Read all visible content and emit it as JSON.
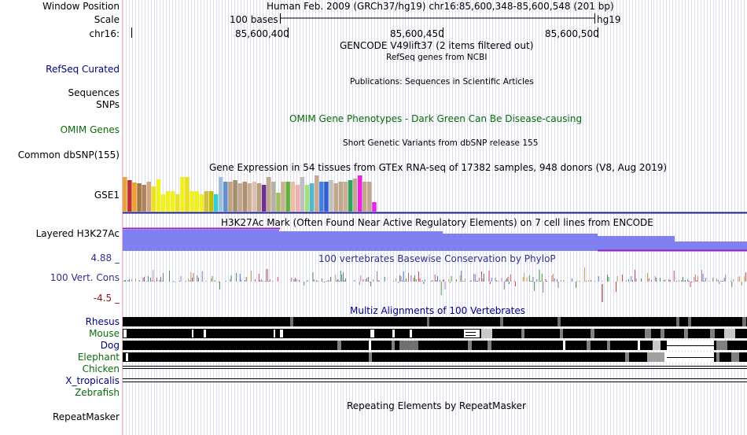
{
  "header": {
    "window_position_label": "Window Position",
    "window_position_value": "Human Feb. 2009 (GRCh37/hg19)   chr16:85,600,348-85,600,548 (201 bp)",
    "scale_label": "Scale",
    "scale_value": "100 bases",
    "scale_genome": "hg19",
    "chrom_label": "chr16:",
    "ticks": [
      "85,600,400",
      "85,600,450",
      "85,600,500"
    ]
  },
  "tracks": {
    "gencode": {
      "title": "GENCODE V49lift37 (2 items filtered out)"
    },
    "refseq": {
      "label": "RefSeq Curated",
      "title": "RefSeq genes from NCBI"
    },
    "publications": {
      "label_sequences": "Sequences",
      "label_snps": "SNPs",
      "title": "Publications: Sequences in Scientific Articles"
    },
    "omim": {
      "label": "OMIM Genes",
      "title": "OMIM Gene Phenotypes - Dark Green Can Be Disease-causing"
    },
    "dbsnp": {
      "label": "Common dbSNP(155)",
      "title": "Short Genetic Variants from dbSNP release 155"
    },
    "gtex": {
      "label": "GSE1",
      "title": "Gene Expression in 54 tissues from GTEx RNA-seq of 17382 samples, 948 donors (V8, Aug 2019)",
      "values": [
        44,
        40,
        37,
        36,
        34,
        38,
        32,
        41,
        22,
        26,
        26,
        22,
        44,
        44,
        26,
        26,
        22,
        26,
        26,
        22,
        44,
        38,
        38,
        40,
        36,
        38,
        36,
        38,
        36,
        34,
        44,
        38,
        24,
        38,
        38,
        38,
        34,
        44,
        34,
        36,
        46,
        38,
        38,
        40,
        36,
        38,
        38,
        40,
        42,
        46,
        38,
        38,
        12,
        0
      ],
      "colors": [
        "#e8a040",
        "#c03030",
        "#f0a030",
        "#a07840",
        "#b08060",
        "#d0a880",
        "#f0e020",
        "#f0f020",
        "#f0f020",
        "#f0f020",
        "#f0f020",
        "#e8e030",
        "#f0f020",
        "#e8e020",
        "#f0f020",
        "#f0f020",
        "#f0f020",
        "#d0c040",
        "#c0c000",
        "#30d0d0",
        "#a0c0e0",
        "#6090d0",
        "#c0a080",
        "#a09070",
        "#c0a890",
        "#b09070",
        "#c8b090",
        "#e0c0b0",
        "#b8a080",
        "#703090",
        "#c0a890",
        "#b8b0a0",
        "#a0c060",
        "#c8b090",
        "#60b040",
        "#e8c0a0",
        "#f0b0b0",
        "#c0c0c0",
        "#a0e080",
        "#50b8c8",
        "#c8a890",
        "#4080e0",
        "#3060d0",
        "#c0c0c0",
        "#c0a890",
        "#c0a890",
        "#c8b090",
        "#30a060",
        "#c0a890",
        "#f020e0",
        "#c0a890",
        "#c0a890",
        "#f020f0",
        "#ffffff"
      ]
    },
    "h3k27ac": {
      "label": "Layered H3K27Ac",
      "title": "H3K27Ac Mark (Often Found Near Active Regulatory Elements) on 7 cell lines from ENCODE",
      "color": "#8080f0"
    },
    "phylop": {
      "label": "100 Vert. Cons",
      "title": "100 vertebrates Basewise Conservation by PhyloP",
      "max": "4.88 _",
      "min": "-4.5 _"
    },
    "multiz": {
      "title": "Multiz Alignments of 100 Vertebrates",
      "species": [
        {
          "name": "Rhesus",
          "color": "#000080"
        },
        {
          "name": "Mouse",
          "color": "#0a6b0a"
        },
        {
          "name": "Dog",
          "color": "#000080"
        },
        {
          "name": "Elephant",
          "color": "#0a6b0a"
        },
        {
          "name": "Chicken",
          "color": "#0a6b0a"
        },
        {
          "name": "X_tropicalis",
          "color": "#000080"
        },
        {
          "name": "Zebrafish",
          "color": "#0a6b0a"
        }
      ]
    },
    "repeatmasker": {
      "label": "RepeatMasker",
      "title": "Repeating Elements by RepeatMasker"
    }
  }
}
